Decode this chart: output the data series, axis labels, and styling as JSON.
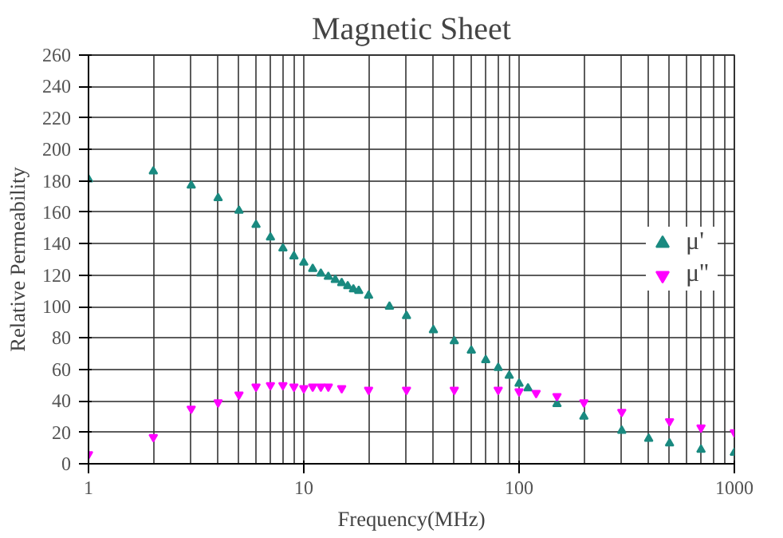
{
  "chart_data": {
    "type": "scatter",
    "title": "Magnetic Sheet",
    "xlabel": "Frequency(MHz)",
    "ylabel": "Relative Permeability",
    "log": "x",
    "xlim": [
      1,
      1000
    ],
    "xticks": [
      1,
      10,
      100,
      1000
    ],
    "ylim": [
      0,
      260
    ],
    "yticks": [
      0,
      20,
      40,
      60,
      80,
      100,
      120,
      140,
      160,
      180,
      200,
      220,
      240,
      260
    ],
    "grid": true,
    "legend": "right",
    "series": [
      {
        "name": "μ'",
        "color": "#1a8a80",
        "marker": "triangle",
        "x": [
          1,
          2,
          3,
          4,
          5,
          6,
          7,
          8,
          9,
          10,
          11,
          12,
          13,
          14,
          15,
          16,
          17,
          18,
          20,
          25,
          30,
          40,
          50,
          60,
          70,
          80,
          90,
          100,
          110,
          150,
          200,
          300,
          400,
          500,
          700,
          1000
        ],
        "values": [
          181,
          186,
          177,
          169,
          161,
          152,
          144,
          137,
          132,
          128,
          124,
          121,
          119,
          117,
          115,
          113,
          111,
          110,
          107,
          100,
          94,
          85,
          78,
          72,
          66,
          61,
          56,
          51,
          48,
          38,
          30,
          21,
          16,
          13,
          9,
          7
        ]
      },
      {
        "name": "μ''",
        "color": "#ff00ff",
        "x": [
          1,
          2,
          3,
          4,
          5,
          6,
          7,
          8,
          9,
          10,
          11,
          12,
          13,
          15,
          20,
          30,
          50,
          80,
          100,
          120,
          150,
          200,
          300,
          500,
          700,
          1000
        ],
        "values": [
          6,
          17,
          35,
          39,
          44,
          49,
          50,
          50,
          49,
          48,
          49,
          49,
          49,
          48,
          47,
          47,
          47,
          47,
          46,
          45,
          43,
          39,
          33,
          27,
          23,
          20
        ]
      }
    ]
  }
}
